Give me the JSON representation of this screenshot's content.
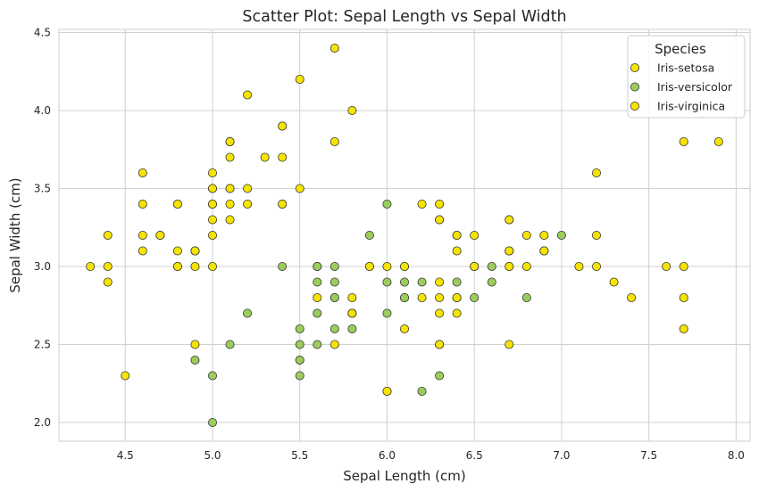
{
  "chart_data": {
    "type": "scatter",
    "title": "Scatter Plot: Sepal Length vs Sepal Width",
    "xlabel": "Sepal Length (cm)",
    "ylabel": "Sepal Width (cm)",
    "xlim": [
      4.12,
      8.08
    ],
    "ylim": [
      1.88,
      4.52
    ],
    "xticks": [
      4.5,
      5.0,
      5.5,
      6.0,
      6.5,
      7.0,
      7.5,
      8.0
    ],
    "xtick_labels": [
      "4.5",
      "5.0",
      "5.5",
      "6.0",
      "6.5",
      "7.0",
      "7.5",
      "8.0"
    ],
    "yticks": [
      2.0,
      2.5,
      3.0,
      3.5,
      4.0,
      4.5
    ],
    "ytick_labels": [
      "2.0",
      "2.5",
      "3.0",
      "3.5",
      "4.0",
      "4.5"
    ],
    "grid": true,
    "legend": {
      "title": "Species",
      "position": "top-right"
    },
    "series": [
      {
        "name": "Iris-setosa",
        "color": "#f5e400",
        "x": [
          5.1,
          4.9,
          4.7,
          4.6,
          5.0,
          5.4,
          4.6,
          5.0,
          4.4,
          4.9,
          5.4,
          4.8,
          4.8,
          4.3,
          5.8,
          5.7,
          5.4,
          5.1,
          5.7,
          5.1,
          5.4,
          5.1,
          4.6,
          5.1,
          4.8,
          5.0,
          5.0,
          5.2,
          5.2,
          4.7,
          4.8,
          5.4,
          5.2,
          5.5,
          4.9,
          5.0,
          5.5,
          4.9,
          4.4,
          5.1,
          5.0,
          4.5,
          4.4,
          5.0,
          5.1,
          4.8,
          5.1,
          4.6,
          5.3,
          5.0
        ],
        "y": [
          3.5,
          3.0,
          3.2,
          3.1,
          3.6,
          3.9,
          3.4,
          3.4,
          2.9,
          3.1,
          3.7,
          3.4,
          3.0,
          3.0,
          4.0,
          4.4,
          3.9,
          3.5,
          3.8,
          3.8,
          3.4,
          3.7,
          3.6,
          3.3,
          3.4,
          3.0,
          3.4,
          3.5,
          3.4,
          3.2,
          3.1,
          3.4,
          4.1,
          4.2,
          3.1,
          3.2,
          3.5,
          3.1,
          3.0,
          3.4,
          3.5,
          2.3,
          3.2,
          3.5,
          3.8,
          3.0,
          3.8,
          3.2,
          3.7,
          3.3
        ]
      },
      {
        "name": "Iris-versicolor",
        "color": "#9acd5b",
        "x": [
          7.0,
          6.4,
          6.9,
          5.5,
          6.5,
          5.7,
          6.3,
          4.9,
          6.6,
          5.2,
          5.0,
          5.9,
          6.0,
          6.1,
          5.6,
          6.7,
          5.6,
          5.8,
          6.2,
          5.6,
          5.9,
          6.1,
          6.3,
          6.1,
          6.4,
          6.6,
          6.8,
          6.7,
          6.0,
          5.7,
          5.5,
          5.5,
          5.8,
          6.0,
          5.4,
          6.0,
          6.7,
          6.3,
          5.6,
          5.5,
          5.5,
          6.1,
          5.8,
          5.0,
          5.6,
          5.7,
          5.7,
          6.2,
          5.1,
          5.7
        ],
        "y": [
          3.2,
          3.2,
          3.1,
          2.3,
          2.8,
          2.8,
          3.3,
          2.4,
          2.9,
          2.7,
          2.0,
          3.0,
          2.2,
          2.9,
          2.9,
          3.1,
          3.0,
          2.7,
          2.2,
          2.5,
          3.2,
          2.8,
          2.5,
          2.8,
          2.9,
          3.0,
          2.8,
          3.0,
          2.9,
          2.6,
          2.4,
          2.4,
          2.7,
          2.7,
          3.0,
          3.4,
          3.1,
          2.3,
          3.0,
          2.5,
          2.6,
          3.0,
          2.6,
          2.3,
          2.7,
          3.0,
          2.9,
          2.9,
          2.5,
          2.8
        ]
      },
      {
        "name": "Iris-virginica",
        "color": "#f5e400",
        "x": [
          6.3,
          5.8,
          7.1,
          6.3,
          6.5,
          7.6,
          4.9,
          7.3,
          6.7,
          7.2,
          6.5,
          6.4,
          6.8,
          5.7,
          5.8,
          6.4,
          6.5,
          7.7,
          7.7,
          6.0,
          6.9,
          5.6,
          7.7,
          6.3,
          6.7,
          7.2,
          6.2,
          6.1,
          6.4,
          7.2,
          7.4,
          7.9,
          6.4,
          6.3,
          6.1,
          7.7,
          6.3,
          6.4,
          6.0,
          6.9,
          6.7,
          6.9,
          5.8,
          6.8,
          6.7,
          6.7,
          6.3,
          6.5,
          6.2,
          5.9
        ],
        "y": [
          3.3,
          2.7,
          3.0,
          2.9,
          3.0,
          3.0,
          2.5,
          2.9,
          2.5,
          3.6,
          3.2,
          2.7,
          3.0,
          2.5,
          2.8,
          3.2,
          3.0,
          3.8,
          2.6,
          2.2,
          3.2,
          2.8,
          2.8,
          2.7,
          3.3,
          3.2,
          2.8,
          3.0,
          2.8,
          3.0,
          2.8,
          3.8,
          2.8,
          2.8,
          2.6,
          3.0,
          3.4,
          3.1,
          3.0,
          3.1,
          3.1,
          3.1,
          2.7,
          3.2,
          3.3,
          3.0,
          2.5,
          3.0,
          3.4,
          3.0
        ]
      }
    ]
  }
}
